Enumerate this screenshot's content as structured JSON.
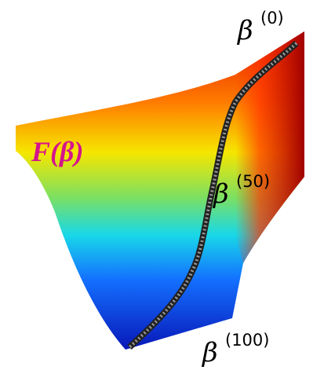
{
  "labels": [
    {
      "base": "F(β)"
    },
    {
      "base": "β",
      "sup": "(0)"
    },
    {
      "base": "β",
      "sup": "(50)"
    },
    {
      "base": "β",
      "sup": "(100)"
    }
  ]
}
